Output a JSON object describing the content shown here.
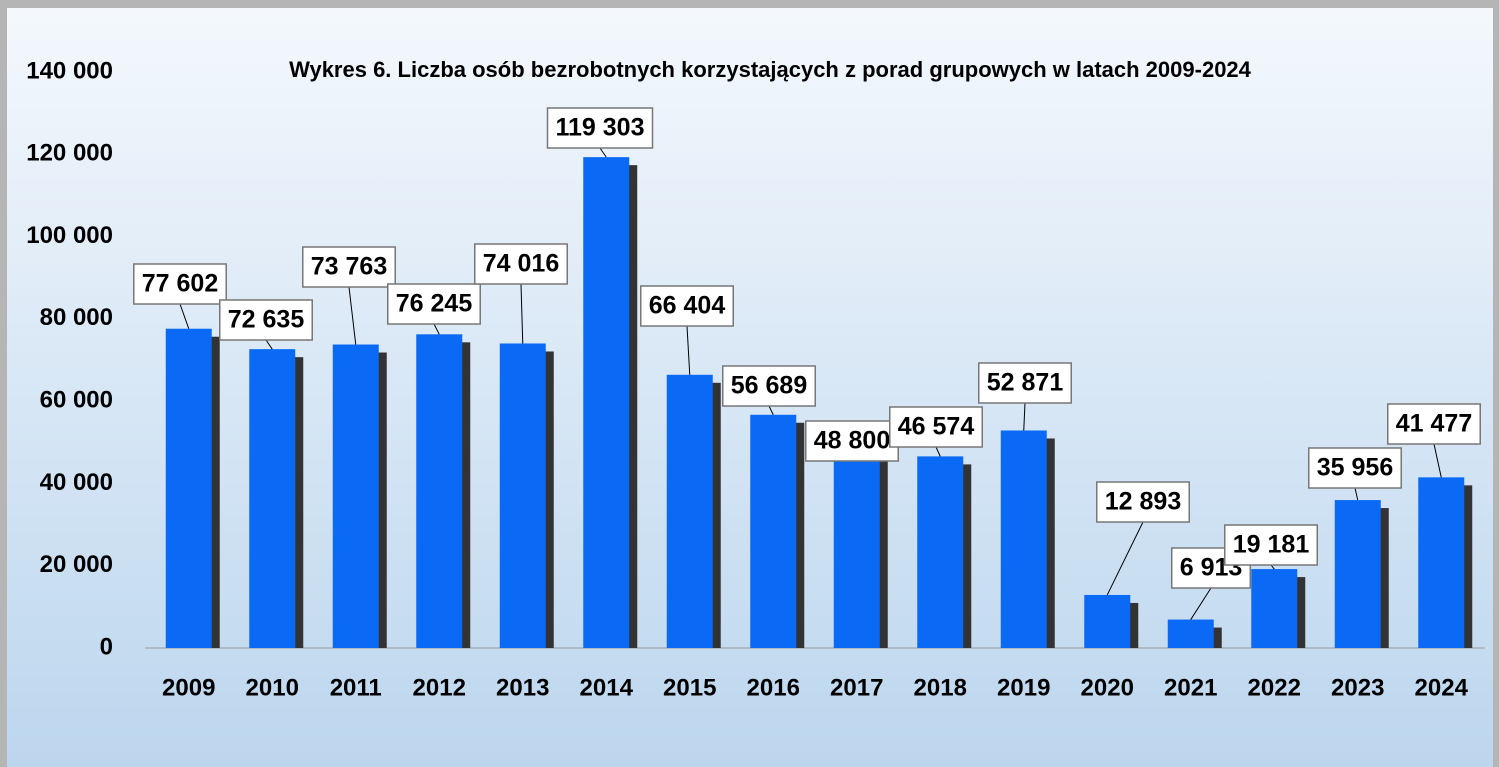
{
  "chart_data": {
    "type": "bar",
    "title": "Wykres 6. Liczba osób bezrobotnych korzystających z porad grupowych w latach 2009-2024",
    "categories": [
      "2009",
      "2010",
      "2011",
      "2012",
      "2013",
      "2014",
      "2015",
      "2016",
      "2017",
      "2018",
      "2019",
      "2020",
      "2021",
      "2022",
      "2023",
      "2024"
    ],
    "values": [
      77602,
      72635,
      73763,
      76245,
      74016,
      119303,
      66404,
      56689,
      48800,
      46574,
      52871,
      12893,
      6913,
      19181,
      35956,
      41477
    ],
    "value_labels": [
      "77 602",
      "72 635",
      "73 763",
      "76 245",
      "74 016",
      "119 303",
      "66 404",
      "56 689",
      "48 800",
      "46 574",
      "52 871",
      "12 893",
      "6 913",
      "19 181",
      "35 956",
      "41 477"
    ],
    "color": "#0a6af5",
    "ylim": [
      0,
      140000
    ],
    "yticks": [
      0,
      {
        "value": 20000,
        "label": "20 000"
      },
      {
        "value": 40000,
        "label": "40 000"
      },
      {
        "value": 60000,
        "label": "60 000"
      },
      {
        "value": 80000,
        "label": "80 000"
      },
      {
        "value": 100000,
        "label": "100 000"
      },
      {
        "value": 120000,
        "label": "120 000"
      },
      {
        "value": 140000,
        "label": "140 000"
      }
    ],
    "grid": false
  }
}
